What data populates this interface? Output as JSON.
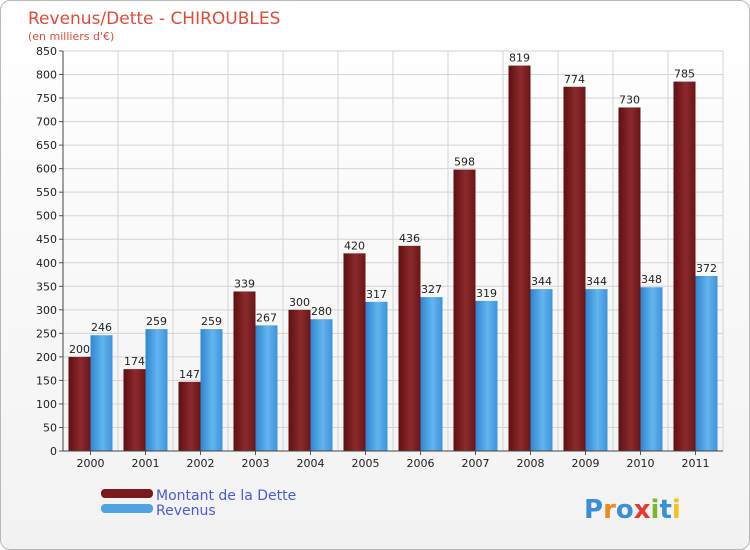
{
  "chart_data": {
    "type": "bar",
    "title": "Revenus/Dette - CHIROUBLES",
    "subtitle": "(en milliers d'€)",
    "categories": [
      "2000",
      "2001",
      "2002",
      "2003",
      "2004",
      "2005",
      "2006",
      "2007",
      "2008",
      "2009",
      "2010",
      "2011"
    ],
    "series": [
      {
        "name": "Montant de la Dette",
        "color": "#7a1a1c",
        "values": [
          200,
          174,
          147,
          339,
          300,
          420,
          436,
          598,
          819,
          774,
          730,
          785
        ]
      },
      {
        "name": "Revenus",
        "color": "#4ea3e3",
        "values": [
          246,
          259,
          259,
          267,
          280,
          317,
          327,
          319,
          344,
          344,
          348,
          372
        ]
      }
    ],
    "yticks": [
      0,
      50,
      100,
      150,
      200,
      250,
      300,
      350,
      400,
      450,
      500,
      550,
      600,
      650,
      700,
      750,
      800,
      850
    ],
    "ylim": [
      0,
      850
    ],
    "grid": true,
    "legend": "bottom-left"
  },
  "logo": {
    "letters": [
      {
        "ch": "P",
        "color": "#3a8fd6"
      },
      {
        "ch": "r",
        "color": "#f08a1c"
      },
      {
        "ch": "o",
        "color": "#3a8fd6"
      },
      {
        "ch": "x",
        "color": "#e23b2e"
      },
      {
        "ch": "i",
        "color": "#7cb82f"
      },
      {
        "ch": "t",
        "color": "#3a8fd6"
      },
      {
        "ch": "i",
        "color": "#f0c419"
      }
    ]
  }
}
